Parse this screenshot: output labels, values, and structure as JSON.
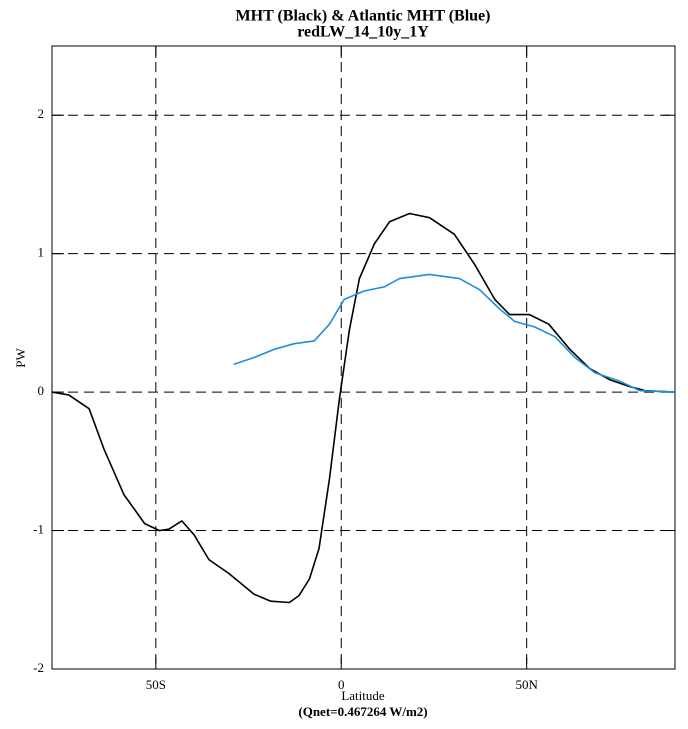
{
  "chart_data": {
    "type": "line",
    "title": "MHT (Black) & Atlantic MHT (Blue)",
    "subtitle": "redLW_14_10y_1Y",
    "x_label": "Latitude",
    "y_label": "PW",
    "annotation": "(Qnet=0.467264 W/m2)",
    "xlim": [
      -78,
      90
    ],
    "ylim": [
      -2,
      2.5
    ],
    "xticks": [
      {
        "value": -50,
        "label": "50S"
      },
      0,
      {
        "value": 50,
        "label": "50N"
      }
    ],
    "yticks": [
      -2,
      -1,
      0,
      1,
      2
    ],
    "grid": true,
    "series": [
      {
        "color": "#000000",
        "x": [
          -78,
          -73.5,
          -68,
          -64,
          -58.6,
          -53,
          -49,
          -46.5,
          -43,
          -39.7,
          -35.7,
          -30.3,
          -23.5,
          -19,
          -14,
          -11.4,
          -8.6,
          -6,
          -3.2,
          -0.5,
          2.2,
          4.9,
          8.9,
          13,
          18.4,
          23.8,
          30.5,
          36,
          41.4,
          45.4,
          50.8,
          56,
          61.6,
          67,
          72.4,
          77.8,
          81.9,
          90
        ],
        "values": [
          0,
          -0.02,
          -0.12,
          -0.41,
          -0.74,
          -0.95,
          -1.0,
          -0.99,
          -0.93,
          -1.03,
          -1.21,
          -1.31,
          -1.46,
          -1.51,
          -1.52,
          -1.47,
          -1.35,
          -1.13,
          -0.63,
          -0.05,
          0.45,
          0.82,
          1.07,
          1.23,
          1.29,
          1.26,
          1.14,
          0.92,
          0.67,
          0.56,
          0.56,
          0.49,
          0.31,
          0.17,
          0.09,
          0.04,
          0.01,
          0
        ]
      },
      {
        "color": "#1f8fdc",
        "x": [
          -29,
          -23.5,
          -18,
          -12.7,
          -7.3,
          -3.2,
          0.8,
          6.2,
          11.6,
          15.7,
          23.8,
          31.9,
          37.3,
          42.7,
          46.8,
          52.2,
          57.6,
          63,
          68.4,
          75,
          80.5,
          90
        ],
        "values": [
          0.2,
          0.25,
          0.31,
          0.35,
          0.37,
          0.49,
          0.67,
          0.73,
          0.76,
          0.82,
          0.85,
          0.82,
          0.74,
          0.6,
          0.51,
          0.47,
          0.4,
          0.25,
          0.14,
          0.08,
          0.01,
          0
        ]
      }
    ]
  }
}
